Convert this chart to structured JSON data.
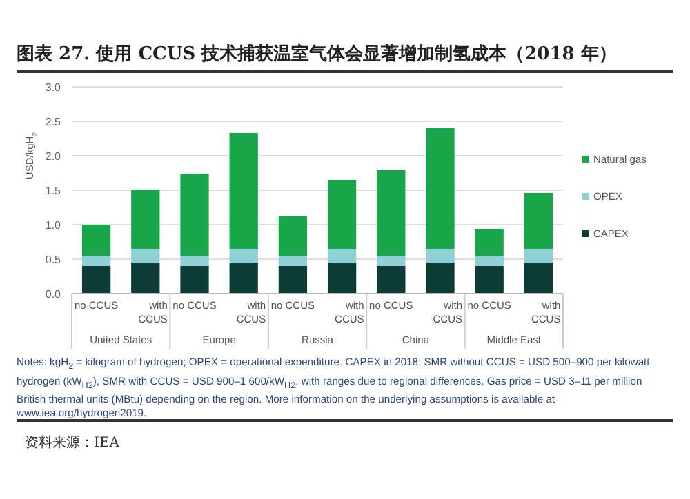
{
  "chart_data": {
    "type": "bar",
    "stacked": true,
    "title": "图表 27. 使用 CCUS 技术捕获温室气体会显著增加制氢成本（2018 年）",
    "ylabel": "USD/kgH$_{2}$",
    "categories": [
      "no CCUS",
      "with CCUS",
      "no CCUS",
      "with CCUS",
      "no CCUS",
      "with CCUS",
      "no CCUS",
      "with CCUS",
      "no CCUS",
      "with CCUS"
    ],
    "series": [
      {
        "name": "CAPEX",
        "color": "#0d3b36",
        "values": [
          0.4,
          0.45,
          0.4,
          0.45,
          0.4,
          0.45,
          0.4,
          0.45,
          0.4,
          0.45
        ]
      },
      {
        "name": "OPEX",
        "color": "#8fcfd6",
        "values": [
          0.15,
          0.2,
          0.15,
          0.2,
          0.15,
          0.2,
          0.15,
          0.2,
          0.15,
          0.2
        ]
      },
      {
        "name": "Natural gas",
        "color": "#1aa64a",
        "values": [
          0.45,
          0.86,
          1.19,
          1.68,
          0.57,
          1.0,
          1.24,
          1.75,
          0.39,
          0.81
        ]
      }
    ],
    "ylim": [
      0,
      3
    ],
    "yticks": [
      {
        "value": 0,
        "label": "0.0"
      },
      {
        "value": 0.5,
        "label": "0.5"
      },
      {
        "value": 1,
        "label": "1.0"
      },
      {
        "value": 1.5,
        "label": "1.5"
      },
      {
        "value": 2,
        "label": "2.0"
      },
      {
        "value": 2.5,
        "label": "2.5"
      },
      {
        "value": 3,
        "label": "3.0"
      }
    ],
    "grid": "y",
    "legend": "right",
    "annotations": [
      "United States",
      "Europe",
      "Russia",
      "China",
      "Middle East",
      "Notes: kgH$_{2}$ = kilogram of hydrogen; OPEX = operational expenditure. CAPEX in 2018: SMR without CCUS = USD 500–900 per kilowatt hydrogen (kW$_{H2}$), SMR with CCUS = USD 900–1 600/kW$_{H2}$, with ranges due to regional differences. Gas price = USD 3–11 per million British thermal units (MBtu) depending on the region. More information on the underlying assumptions is available at www.iea.org/hydrogen2019.",
      "资料来源：IEA"
    ]
  }
}
